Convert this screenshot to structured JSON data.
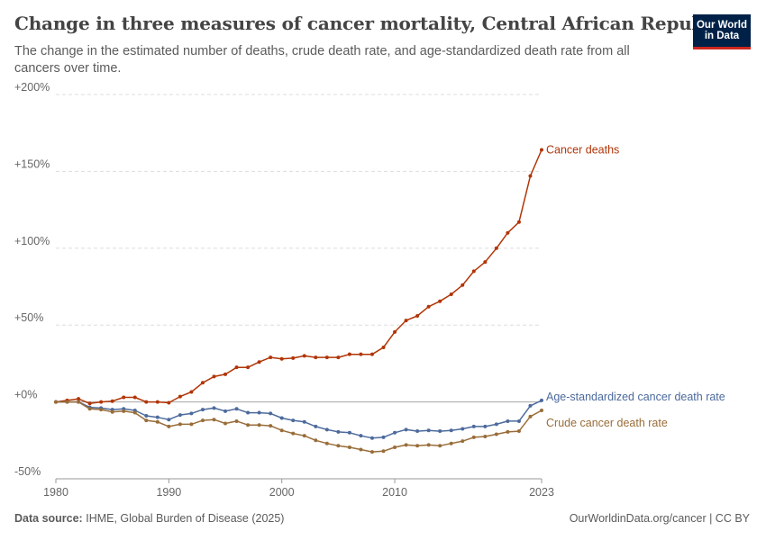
{
  "header": {
    "title": "Change in three measures of cancer mortality, Central African Republic",
    "subtitle": "The change in the estimated number of deaths, crude death rate, and age-standardized death rate from all cancers over time.",
    "logo_line1": "Our World",
    "logo_line2": "in Data"
  },
  "footer": {
    "source_label": "Data source:",
    "source_text": "IHME, Global Burden of Disease (2025)",
    "credit": "OurWorldinData.org/cancer | CC BY"
  },
  "chart_data": {
    "type": "line",
    "ylim": [
      -50,
      200
    ],
    "y_ticks": [
      -50,
      0,
      50,
      100,
      150,
      200
    ],
    "y_tick_labels": [
      "-50%",
      "+0%",
      "+50%",
      "+100%",
      "+150%",
      "+200%"
    ],
    "x_ticks": [
      1980,
      1990,
      2000,
      2010,
      2023
    ],
    "x_tick_labels": [
      "1980",
      "1990",
      "2000",
      "2010",
      "2023"
    ],
    "grid": "horizontal dashed",
    "legend": "inline labels at line ends",
    "x": [
      1980,
      1981,
      1982,
      1983,
      1984,
      1985,
      1986,
      1987,
      1988,
      1989,
      1990,
      1991,
      1992,
      1993,
      1994,
      1995,
      1996,
      1997,
      1998,
      1999,
      2000,
      2001,
      2002,
      2003,
      2004,
      2005,
      2006,
      2007,
      2008,
      2009,
      2010,
      2011,
      2012,
      2013,
      2014,
      2015,
      2016,
      2017,
      2018,
      2019,
      2020,
      2021,
      2022,
      2023
    ],
    "series": [
      {
        "name": "Cancer deaths",
        "color": "#b13507",
        "values": [
          0,
          1,
          2,
          -1,
          0,
          0.5,
          3,
          3,
          0,
          0,
          -0.5,
          3.5,
          6.5,
          12.5,
          16.5,
          18,
          22.5,
          22.5,
          26,
          29,
          28,
          28.5,
          30,
          29,
          29,
          29,
          31,
          31,
          31,
          35.5,
          45.5,
          53,
          56,
          62,
          65.5,
          70,
          76,
          85,
          91,
          100,
          110,
          117,
          147,
          164
        ]
      },
      {
        "name": "Age-standardized cancer death rate",
        "color": "#4c6a9c",
        "values": [
          0,
          0,
          0,
          -3.5,
          -4,
          -5,
          -4.5,
          -5.5,
          -9,
          -10,
          -11.5,
          -8.5,
          -7.5,
          -5,
          -4,
          -6,
          -4.5,
          -7,
          -7,
          -7.5,
          -10.5,
          -12,
          -13,
          -16,
          -18,
          -19.5,
          -20,
          -22,
          -23.5,
          -23,
          -20,
          -18,
          -19,
          -18.5,
          -19,
          -18.5,
          -17.5,
          -16,
          -16,
          -14.5,
          -12.5,
          -12.5,
          -2.5,
          1
        ]
      },
      {
        "name": "Crude cancer death rate",
        "color": "#996d39",
        "values": [
          0,
          0,
          0,
          -4.5,
          -5,
          -6.5,
          -6,
          -7,
          -12,
          -13,
          -16,
          -14.5,
          -14.5,
          -12,
          -11.5,
          -14,
          -12.5,
          -15,
          -15,
          -15.5,
          -18.5,
          -20.5,
          -22,
          -25,
          -27,
          -28.5,
          -29.5,
          -31,
          -32.5,
          -32,
          -29.5,
          -28,
          -28.5,
          -28,
          -28.5,
          -27,
          -25.5,
          -23,
          -22.5,
          -21,
          -19.5,
          -19,
          -9.5,
          -5.5
        ]
      }
    ]
  }
}
